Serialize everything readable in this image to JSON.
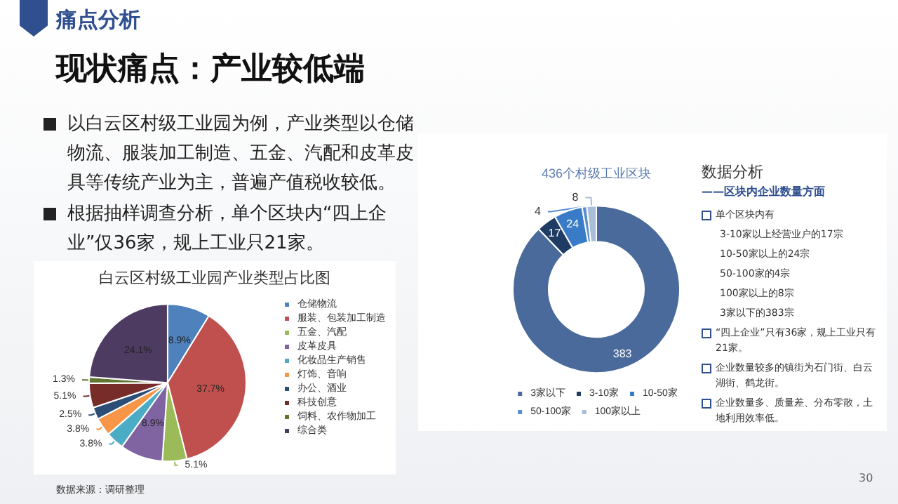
{
  "chart_data": [
    {
      "type": "pie",
      "title": "白云区村级工业园产业类型占比图",
      "categories": [
        "仓储物流",
        "服装、包装加工制造",
        "五金、汽配",
        "皮革皮具",
        "化妆品生产销售",
        "灯饰、音响",
        "办公、酒业",
        "科技创意",
        "饲料、农作物加工",
        "综合类"
      ],
      "values": [
        8.9,
        37.7,
        5.1,
        8.9,
        3.8,
        3.8,
        2.5,
        5.1,
        1.3,
        24.1
      ],
      "value_labels": [
        "8.9%",
        "37.7%",
        "5.1%",
        "8.9%",
        "3.8%",
        "3.8%",
        "2.5%",
        "5.1%",
        "1.3%",
        "24.1%"
      ],
      "colors": [
        "#4f81bd",
        "#c0504d",
        "#9bbb59",
        "#8064a2",
        "#4bacc6",
        "#f79646",
        "#2c4d75",
        "#772c2a",
        "#5f7530",
        "#4d3b62"
      ],
      "legend": "right",
      "annotations": [
        "痛点分析",
        "现状痛点：产业较低端",
        "以白云区村级工业园为例，产业类型以仓储物流、服装加工制造、五金、汽配和皮革皮具等传统产业为主，普遍产值税收较低。",
        "根据抽样调查分析，单个区块内“四上企业”仅36家，规上工业只21家。",
        "数据来源：调研整理",
        "30"
      ]
    },
    {
      "type": "donut",
      "title": "436个村级工业区块",
      "categories": [
        "3家以下",
        "3-10家",
        "10-50家",
        "50-100家",
        "100家以上"
      ],
      "values": [
        383,
        17,
        24,
        4,
        8
      ],
      "colors": [
        "#4a6a9c",
        "#1f3c64",
        "#3a7bc8",
        "#5b8fd0",
        "#a9bcd8"
      ],
      "data_labels": true,
      "legend": "bottom",
      "annotations": [
        "数据分析",
        "——区块内企业数量方面",
        "单个区块内有",
        "3-10家以上经营业户的17宗",
        "10-50家以上的24宗",
        "50-100家的4宗",
        "100家以上的8宗",
        "3家以下的383宗",
        "“四上企业”只有36家，规上工业只有21家。",
        "企业数量较多的镇街为石门街、白云湖街、鹤龙街。",
        "企业数量多、质量差、分布零散，土地利用效率低。"
      ]
    }
  ]
}
